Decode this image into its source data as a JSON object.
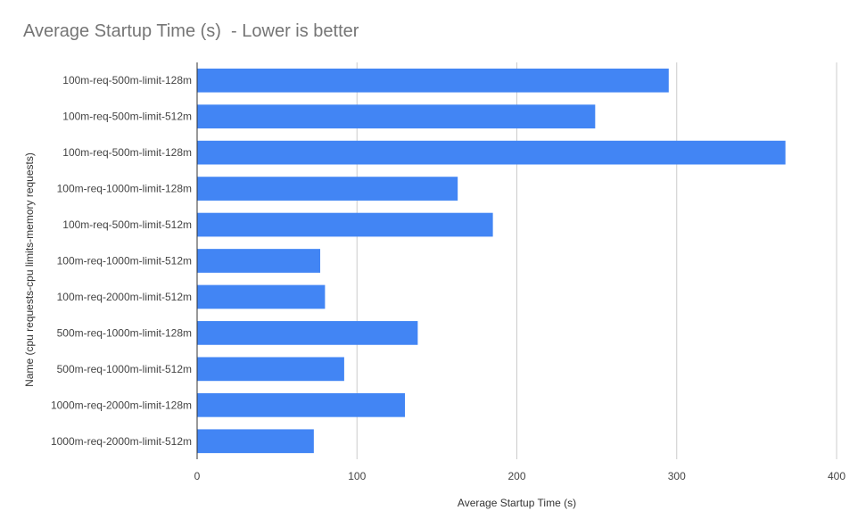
{
  "chart_data": {
    "type": "bar",
    "orientation": "horizontal",
    "title": "Average Startup Time (s)  - Lower is better",
    "xlabel": "Average Startup Time (s)",
    "ylabel": "Name  (cpu requests-cpu limits-memory requests)",
    "xlim": [
      0,
      400
    ],
    "xticks": [
      "0",
      "100",
      "200",
      "300",
      "400"
    ],
    "grid": true,
    "legend": "none",
    "bar_color": "#4285f4",
    "categories": [
      "100m-req-500m-limit-128m",
      "100m-req-500m-limit-512m",
      "100m-req-500m-limit-128m",
      "100m-req-1000m-limit-128m",
      "100m-req-500m-limit-512m",
      "100m-req-1000m-limit-512m",
      "100m-req-2000m-limit-512m",
      "500m-req-1000m-limit-128m",
      "500m-req-1000m-limit-512m",
      "1000m-req-2000m-limit-128m",
      "1000m-req-2000m-limit-512m"
    ],
    "values": [
      295,
      249,
      368,
      163,
      185,
      77,
      80,
      138,
      92,
      130,
      73
    ]
  }
}
